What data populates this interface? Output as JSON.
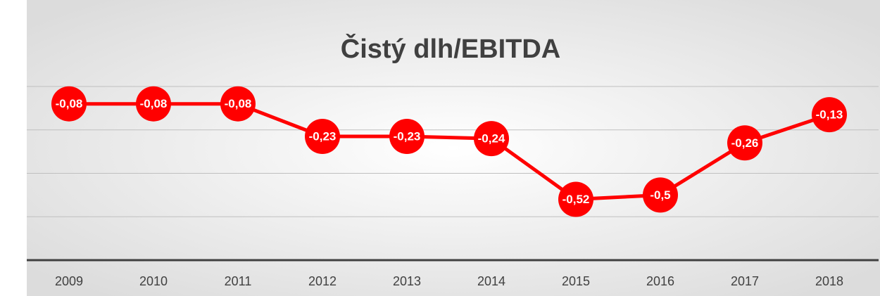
{
  "chart_data": {
    "type": "line",
    "title": "Čistý dlh/EBITDA",
    "categories": [
      "2009",
      "2010",
      "2011",
      "2012",
      "2013",
      "2014",
      "2015",
      "2016",
      "2017",
      "2018"
    ],
    "values": [
      -0.08,
      -0.08,
      -0.08,
      -0.23,
      -0.23,
      -0.24,
      -0.52,
      -0.5,
      -0.26,
      -0.13
    ],
    "value_labels": [
      "-0,08",
      "-0,08",
      "-0,08",
      "-0,23",
      "-0,23",
      "-0,24",
      "-0,52",
      "-0,5",
      "-0,26",
      "-0,13"
    ],
    "color": "#ff0000",
    "ylim": [
      -0.8,
      0
    ],
    "yticks": [
      -0.8,
      -0.6,
      -0.4,
      -0.2,
      0
    ],
    "grid": true
  }
}
